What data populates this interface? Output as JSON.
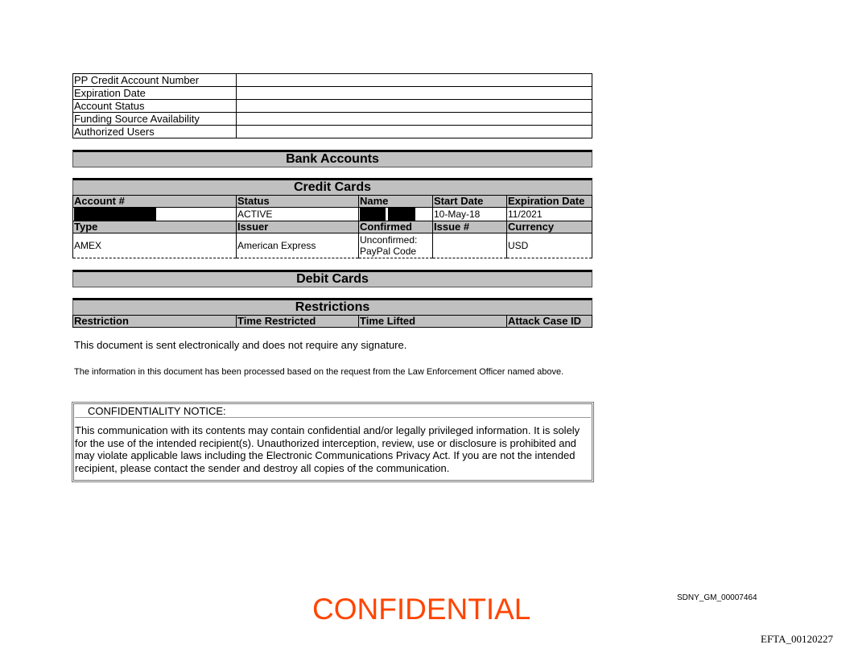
{
  "info_table": [
    {
      "label": "PP Credit Account Number",
      "value": ""
    },
    {
      "label": "Expiration Date",
      "value": ""
    },
    {
      "label": "Account Status",
      "value": ""
    },
    {
      "label": "Funding Source Availability",
      "value": ""
    },
    {
      "label": "Authorized Users",
      "value": ""
    }
  ],
  "bank_accounts": {
    "title": "Bank Accounts"
  },
  "credit_cards": {
    "title": "Credit Cards",
    "headers1": [
      "Account #",
      "Status",
      "Name",
      "Start Date",
      "Expiration Date"
    ],
    "row1": {
      "account": "",
      "status": "ACTIVE",
      "name": "",
      "start_date": "10-May-18",
      "expiration_date": "11/2021"
    },
    "headers2": [
      "Type",
      "Issuer",
      "Confirmed",
      "Issue #",
      "Currency"
    ],
    "row2": {
      "type": "AMEX",
      "issuer": "American Express",
      "confirmed_line1": "Unconfirmed:",
      "confirmed_line2": "PayPal Code",
      "issue": "",
      "currency": "USD"
    }
  },
  "debit_cards": {
    "title": "Debit Cards"
  },
  "restrictions": {
    "title": "Restrictions",
    "headers": [
      "Restriction",
      "Time Restricted",
      "Time Lifted",
      "",
      "Attack Case ID"
    ]
  },
  "notes": {
    "signature": "This document is sent electronically and does not require any signature.",
    "processed": "The information in this document has been processed based on the request from the Law Enforcement Officer named above."
  },
  "confidentiality": {
    "title": "CONFIDENTIALITY NOTICE:",
    "body": "This communication with its contents may contain confidential and/or legally privileged information. It is solely for the use of the intended recipient(s). Unauthorized interception, review, use or disclosure is prohibited and may violate applicable laws including the Electronic Communications Privacy Act. If you are not the intended recipient, please contact the sender and destroy all copies of the communication."
  },
  "footer": {
    "stamp": "CONFIDENTIAL",
    "stamp_color": "#ff4500",
    "bates": "SDNY_GM_00007464",
    "efta": "EFTA_00120227"
  }
}
